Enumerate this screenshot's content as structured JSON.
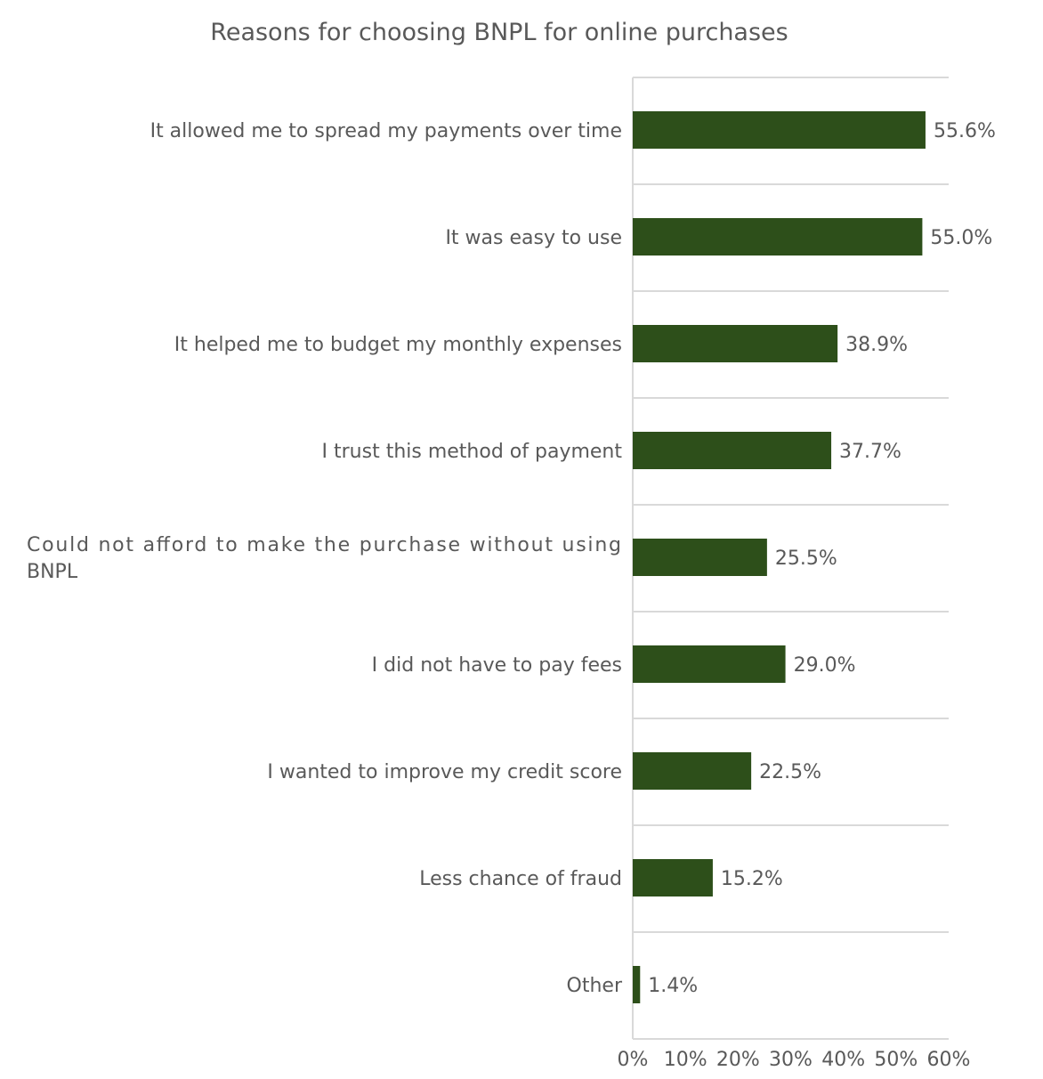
{
  "chart_data": {
    "type": "bar",
    "orientation": "horizontal",
    "title": "Reasons for choosing BNPL for online purchases",
    "xlabel": "",
    "ylabel": "",
    "categories": [
      "It allowed me to spread my payments over time",
      "It was easy to use",
      "It helped me to budget my monthly expenses",
      "I trust this method of payment",
      "Could not afford to make the purchase without using BNPL",
      "I did not have to pay fees",
      "I wanted to improve my credit score",
      "Less chance of fraud",
      "Other"
    ],
    "values": [
      55.6,
      55.0,
      38.9,
      37.7,
      25.5,
      29.0,
      22.5,
      15.2,
      1.4
    ],
    "data_labels": [
      "55.6%",
      "55.0%",
      "38.9%",
      "37.7%",
      "25.5%",
      "29.0%",
      "22.5%",
      "15.2%",
      "1.4%"
    ],
    "xlim": [
      0,
      60
    ],
    "xticks": [
      "0%",
      "10%",
      "20%",
      "30%",
      "40%",
      "50%",
      "60%"
    ],
    "grid": "horizontal separators",
    "legend": "none",
    "bar_color": "#2d4f1a"
  }
}
